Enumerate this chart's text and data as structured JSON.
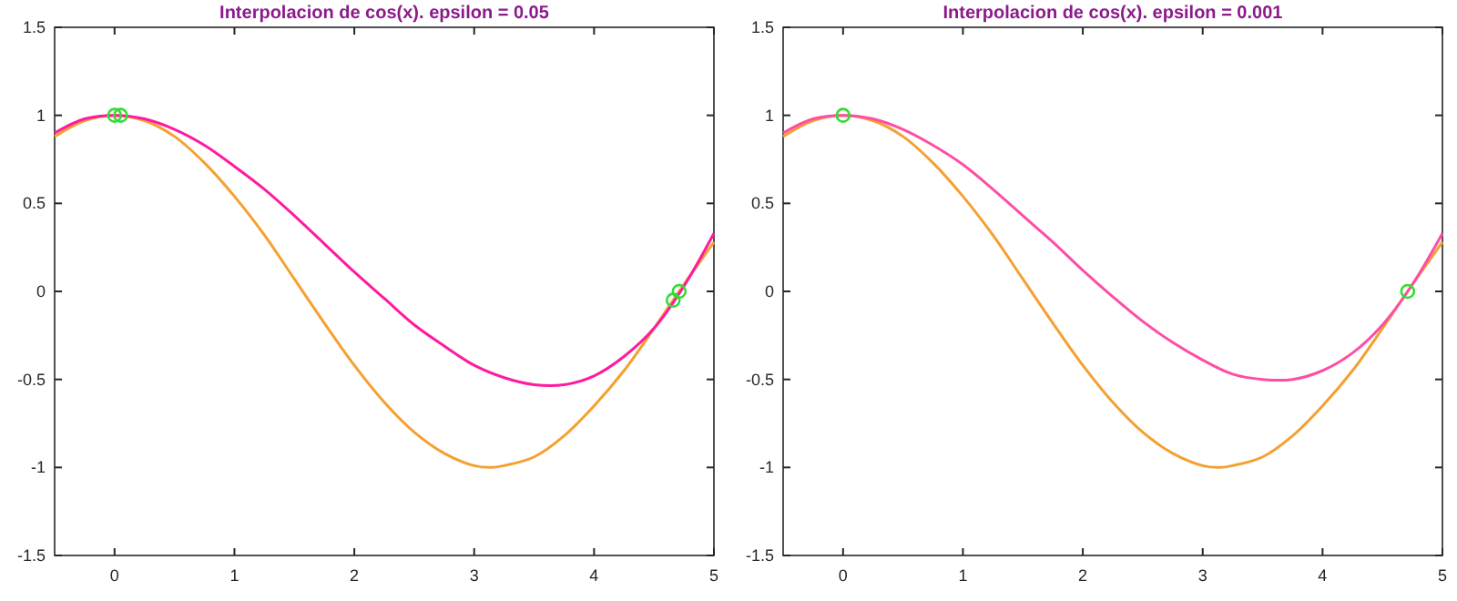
{
  "chart_data": [
    {
      "type": "line",
      "title": "Interpolacion de cos(x). epsilon = 0.05",
      "xlim": [
        -0.5,
        5
      ],
      "ylim": [
        -1.5,
        1.5
      ],
      "xticks": [
        0,
        1,
        2,
        3,
        4,
        5
      ],
      "yticks": [
        -1.5,
        -1,
        -0.5,
        0,
        0.5,
        1,
        1.5
      ],
      "grid": false,
      "series": [
        {
          "color": "#f5a030",
          "x": [
            -0.5,
            -0.25,
            0,
            0.25,
            0.5,
            0.75,
            1,
            1.25,
            1.5,
            1.75,
            2,
            2.25,
            2.5,
            2.75,
            3,
            3.14,
            3.25,
            3.5,
            3.75,
            4,
            4.25,
            4.5,
            4.75,
            5
          ],
          "values": [
            0.88,
            0.97,
            1,
            0.97,
            0.88,
            0.73,
            0.54,
            0.32,
            0.07,
            -0.18,
            -0.42,
            -0.63,
            -0.8,
            -0.92,
            -0.99,
            -1,
            -0.99,
            -0.94,
            -0.82,
            -0.65,
            -0.45,
            -0.21,
            0.04,
            0.28
          ]
        },
        {
          "color": "#ff1aa0",
          "x": [
            -0.5,
            -0.25,
            0,
            0.25,
            0.5,
            0.75,
            1,
            1.25,
            1.5,
            1.75,
            2,
            2.25,
            2.5,
            2.75,
            3,
            3.25,
            3.5,
            3.75,
            4,
            4.25,
            4.5,
            4.75,
            5
          ],
          "values": [
            0.9,
            0.98,
            1,
            0.98,
            0.92,
            0.83,
            0.71,
            0.58,
            0.43,
            0.27,
            0.11,
            -0.04,
            -0.19,
            -0.31,
            -0.42,
            -0.49,
            -0.53,
            -0.53,
            -0.48,
            -0.37,
            -0.21,
            0.03,
            0.33
          ]
        },
        {
          "type": "scatter",
          "marker": "circle",
          "color": "#33dd33",
          "x": [
            0,
            0.05,
            4.66,
            4.71
          ],
          "values": [
            1,
            1,
            -0.05,
            0
          ]
        }
      ]
    },
    {
      "type": "line",
      "title": "Interpolacion de cos(x). epsilon = 0.001",
      "xlim": [
        -0.5,
        5
      ],
      "ylim": [
        -1.5,
        1.5
      ],
      "xticks": [
        0,
        1,
        2,
        3,
        4,
        5
      ],
      "yticks": [
        -1.5,
        -1,
        -0.5,
        0,
        0.5,
        1,
        1.5
      ],
      "grid": false,
      "series": [
        {
          "color": "#f5a030",
          "x": [
            -0.5,
            -0.25,
            0,
            0.25,
            0.5,
            0.75,
            1,
            1.25,
            1.5,
            1.75,
            2,
            2.25,
            2.5,
            2.75,
            3,
            3.14,
            3.25,
            3.5,
            3.75,
            4,
            4.25,
            4.5,
            4.75,
            5
          ],
          "values": [
            0.88,
            0.97,
            1,
            0.97,
            0.88,
            0.73,
            0.54,
            0.32,
            0.07,
            -0.18,
            -0.42,
            -0.63,
            -0.8,
            -0.92,
            -0.99,
            -1,
            -0.99,
            -0.94,
            -0.82,
            -0.65,
            -0.45,
            -0.21,
            0.04,
            0.28
          ]
        },
        {
          "color": "#ff4da6",
          "x": [
            -0.5,
            -0.25,
            0,
            0.25,
            0.5,
            0.75,
            1,
            1.25,
            1.5,
            1.75,
            2,
            2.25,
            2.5,
            2.75,
            3,
            3.25,
            3.5,
            3.75,
            4,
            4.25,
            4.5,
            4.75,
            5
          ],
          "values": [
            0.9,
            0.98,
            1,
            0.98,
            0.92,
            0.83,
            0.72,
            0.58,
            0.43,
            0.28,
            0.12,
            -0.03,
            -0.17,
            -0.29,
            -0.39,
            -0.47,
            -0.5,
            -0.5,
            -0.45,
            -0.35,
            -0.19,
            0.04,
            0.33
          ]
        },
        {
          "type": "scatter",
          "marker": "circle",
          "color": "#33dd33",
          "x": [
            0,
            4.71
          ],
          "values": [
            1,
            0
          ]
        }
      ]
    }
  ]
}
